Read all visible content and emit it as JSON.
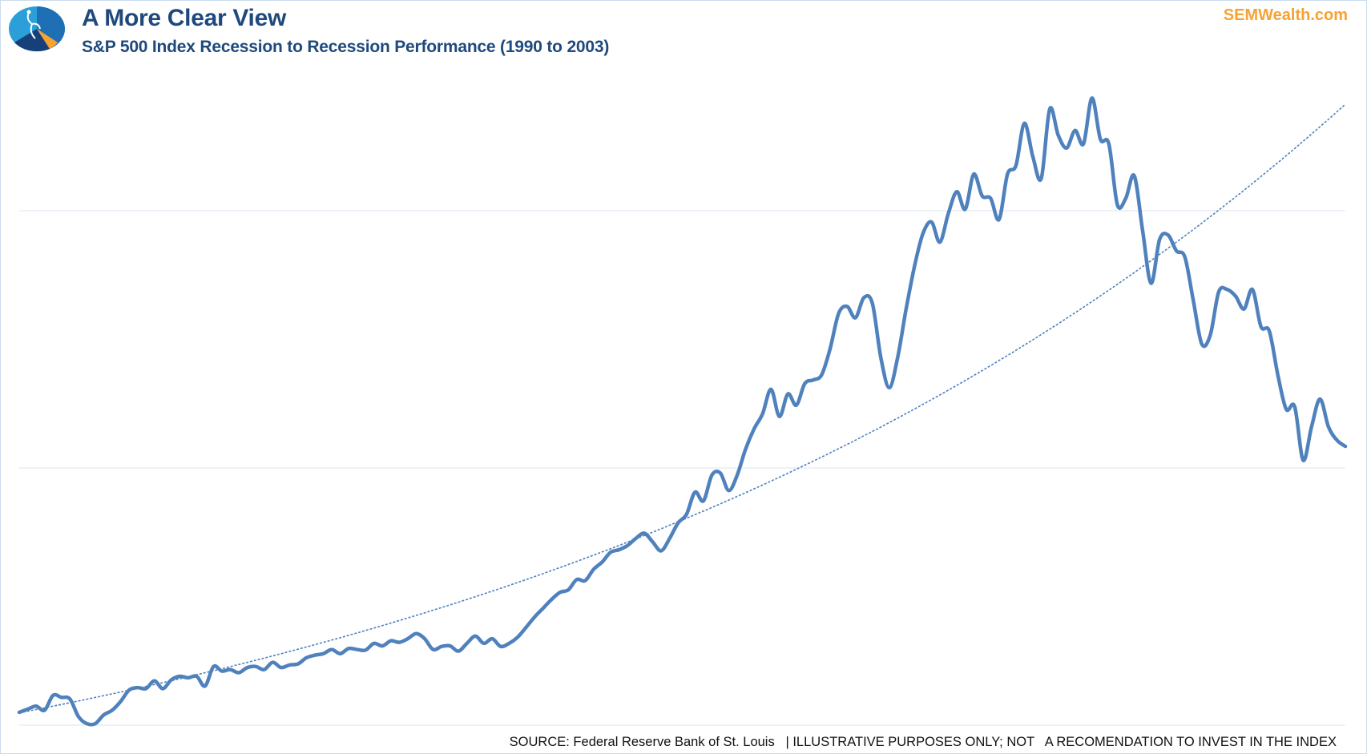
{
  "header": {
    "title": "A More Clear View",
    "subtitle": "S&P 500 Index Recession to Recession Performance (1990 to 2003)",
    "brand": "SEMWealth.com"
  },
  "footer": {
    "source": "SOURCE: Federal Reserve Bank of St. Louis   | ILLUSTRATIVE PURPOSES ONLY; NOT   A RECOMENDATION TO INVEST IN THE INDEX"
  },
  "colors": {
    "line": "#4f81bd",
    "trend": "#4f81bd",
    "grid": "#dce6f2",
    "title": "#1f497d",
    "brand": "#f7a232"
  },
  "chart_data": {
    "type": "line",
    "title": "S&P 500 Index Recession to Recession Performance (1990 to 2003)",
    "xlabel": "",
    "ylabel": "",
    "x_range": [
      1990.0,
      2003.25
    ],
    "ylim": [
      300,
      1540
    ],
    "gridlines": [
      300,
      800,
      1300
    ],
    "grid": true,
    "legend": "none",
    "series": [
      {
        "name": "S&P 500 Index",
        "values": [
          325,
          331,
          337,
          329,
          358,
          354,
          351,
          317,
          303,
          303,
          320,
          329,
          346,
          368,
          373,
          371,
          386,
          371,
          388,
          395,
          392,
          395,
          376,
          414,
          405,
          408,
          402,
          412,
          414,
          408,
          422,
          412,
          417,
          419,
          431,
          436,
          439,
          447,
          439,
          449,
          447,
          446,
          459,
          454,
          464,
          461,
          468,
          478,
          468,
          447,
          453,
          454,
          444,
          459,
          473,
          459,
          468,
          453,
          459,
          471,
          490,
          510,
          527,
          544,
          558,
          563,
          583,
          581,
          603,
          617,
          636,
          641,
          649,
          663,
          673,
          656,
          639,
          663,
          693,
          710,
          753,
          736,
          786,
          790,
          756,
          786,
          837,
          876,
          905,
          953,
          900,
          944,
          922,
          964,
          971,
          981,
          1032,
          1100,
          1114,
          1092,
          1131,
          1120,
          1015,
          956,
          1015,
          1109,
          1193,
          1256,
          1278,
          1239,
          1295,
          1337,
          1303,
          1371,
          1329,
          1324,
          1283,
          1371,
          1388,
          1470,
          1405,
          1363,
          1498,
          1447,
          1422,
          1456,
          1430,
          1519,
          1439,
          1430,
          1312,
          1324,
          1368,
          1261,
          1159,
          1244,
          1253,
          1222,
          1210,
          1125,
          1041,
          1058,
          1142,
          1147,
          1134,
          1109,
          1147,
          1075,
          1066,
          981,
          914,
          919,
          815,
          880,
          934,
          880,
          854,
          842
        ]
      },
      {
        "name": "Exponential trendline",
        "type": "exponential",
        "start_value": 324,
        "end_value": 1507
      }
    ]
  }
}
